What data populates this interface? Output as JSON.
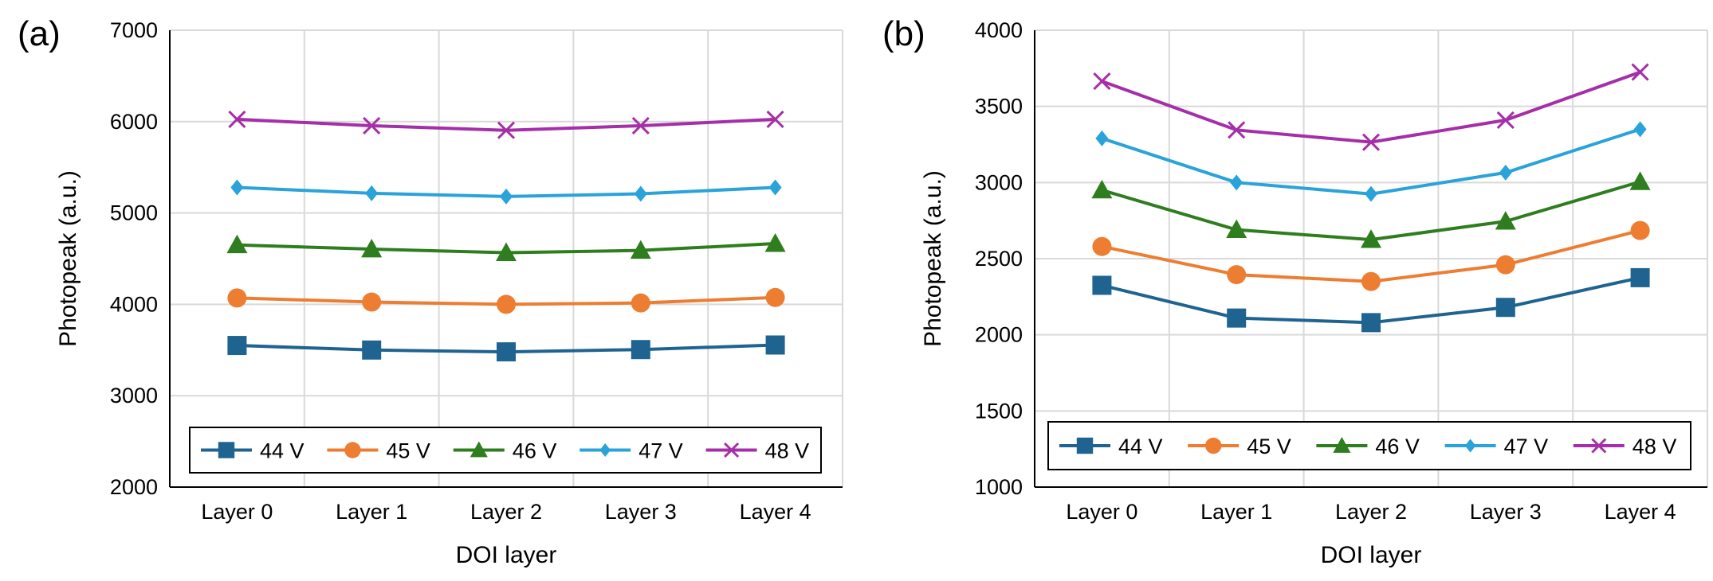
{
  "chart_data": [
    {
      "type": "line",
      "panel_label": "(a)",
      "xlabel": "DOI layer",
      "ylabel": "Photopeak (a.u.)",
      "categories": [
        "Layer 0",
        "Layer 1",
        "Layer 2",
        "Layer 3",
        "Layer 4"
      ],
      "ylim": [
        2000,
        7000
      ],
      "yticks": [
        2000,
        3000,
        4000,
        5000,
        6000,
        7000
      ],
      "grid": true,
      "legend_position": "bottom",
      "series": [
        {
          "name": "44 V",
          "color": "#1f6391",
          "marker": "square",
          "values": [
            3550,
            3500,
            3480,
            3505,
            3555
          ]
        },
        {
          "name": "45 V",
          "color": "#ed7d31",
          "marker": "circle",
          "values": [
            4070,
            4025,
            4000,
            4015,
            4075
          ]
        },
        {
          "name": "46 V",
          "color": "#2e7d1e",
          "marker": "triangle",
          "values": [
            4650,
            4605,
            4565,
            4590,
            4665
          ]
        },
        {
          "name": "47 V",
          "color": "#29a3d9",
          "marker": "diamond",
          "values": [
            5280,
            5215,
            5180,
            5210,
            5280
          ]
        },
        {
          "name": "48 V",
          "color": "#a52fa8",
          "marker": "x",
          "values": [
            6025,
            5955,
            5905,
            5955,
            6025
          ]
        }
      ]
    },
    {
      "type": "line",
      "panel_label": "(b)",
      "xlabel": "DOI layer",
      "ylabel": "Photopeak (a.u.)",
      "categories": [
        "Layer 0",
        "Layer 1",
        "Layer 2",
        "Layer 3",
        "Layer 4"
      ],
      "ylim": [
        1000,
        4000
      ],
      "yticks": [
        1000,
        1500,
        2000,
        2500,
        3000,
        3500,
        4000
      ],
      "grid": true,
      "legend_position": "bottom",
      "series": [
        {
          "name": "44 V",
          "color": "#1f6391",
          "marker": "square",
          "values": [
            2325,
            2110,
            2080,
            2180,
            2375
          ]
        },
        {
          "name": "45 V",
          "color": "#ed7d31",
          "marker": "circle",
          "values": [
            2580,
            2395,
            2350,
            2460,
            2685
          ]
        },
        {
          "name": "46 V",
          "color": "#2e7d1e",
          "marker": "triangle",
          "values": [
            2950,
            2690,
            2625,
            2745,
            3005
          ]
        },
        {
          "name": "47 V",
          "color": "#29a3d9",
          "marker": "diamond",
          "values": [
            3290,
            3000,
            2925,
            3065,
            3350
          ]
        },
        {
          "name": "48 V",
          "color": "#a52fa8",
          "marker": "x",
          "values": [
            3665,
            3345,
            3265,
            3410,
            3725
          ]
        }
      ]
    }
  ]
}
